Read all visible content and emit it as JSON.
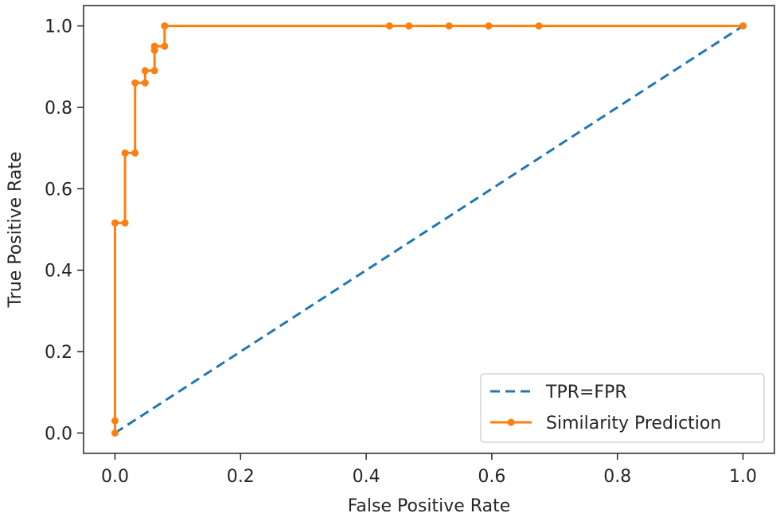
{
  "chart_data": {
    "type": "line",
    "title": "",
    "xlabel": "False Positive Rate",
    "ylabel": "True Positive Rate",
    "xlim": [
      -0.05,
      1.05
    ],
    "ylim": [
      -0.05,
      1.05
    ],
    "xticks": [
      0.0,
      0.2,
      0.4,
      0.6,
      0.8,
      1.0
    ],
    "yticks": [
      0.0,
      0.2,
      0.4,
      0.6,
      0.8,
      1.0
    ],
    "xtick_labels": [
      "0.0",
      "0.2",
      "0.4",
      "0.6",
      "0.8",
      "1.0"
    ],
    "ytick_labels": [
      "0.0",
      "0.2",
      "0.4",
      "0.6",
      "0.8",
      "1.0"
    ],
    "grid": false,
    "legend_position": "lower-right",
    "series": [
      {
        "name": "TPR=FPR",
        "color": "#1f77b4",
        "style": "dashed",
        "markers": false,
        "x": [
          0.0,
          1.0
        ],
        "y": [
          0.0,
          1.0
        ]
      },
      {
        "name": "Similarity Prediction",
        "color": "#ff7f0e",
        "style": "solid",
        "markers": true,
        "x": [
          0.0,
          0.0,
          0.0,
          0.016,
          0.016,
          0.032,
          0.032,
          0.048,
          0.048,
          0.063,
          0.063,
          0.063,
          0.079,
          0.079,
          0.437,
          0.468,
          0.532,
          0.595,
          0.675,
          1.0
        ],
        "y": [
          0.0,
          0.03,
          0.516,
          0.516,
          0.688,
          0.688,
          0.86,
          0.86,
          0.89,
          0.89,
          0.94,
          0.95,
          0.95,
          1.0,
          1.0,
          1.0,
          1.0,
          1.0,
          1.0,
          1.0
        ]
      }
    ]
  }
}
